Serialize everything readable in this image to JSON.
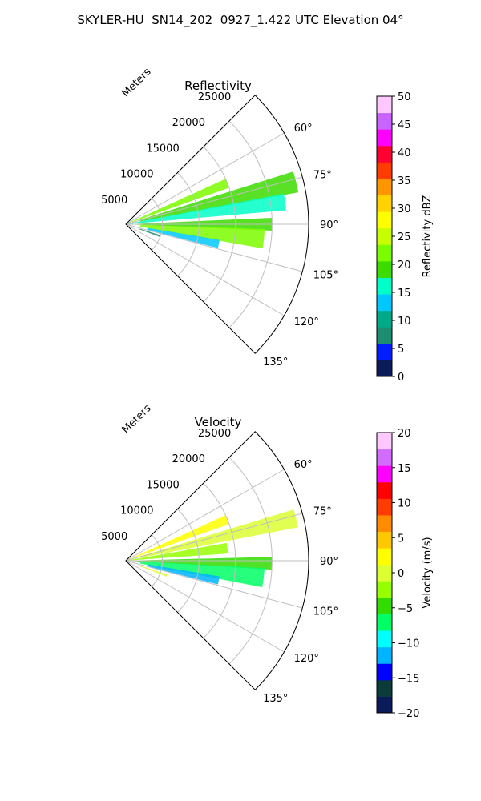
{
  "figure_title": "SKYLER-HU  SN14_202  0927_1.422 UTC Elevation 04°",
  "chart_data": [
    {
      "type": "heatmap",
      "subtype": "polar-sector",
      "title": "Reflectivity",
      "radial_axis_label": "Meters",
      "radial_ticks": [
        5000,
        10000,
        15000,
        20000,
        25000
      ],
      "radial_tick_labels": [
        "5000",
        "10000",
        "15000",
        "20000",
        "25000"
      ],
      "rlim": [
        0,
        25000
      ],
      "azimuth_range_deg": [
        45,
        135
      ],
      "azimuth_ticks": [
        60,
        75,
        90,
        105,
        120,
        135
      ],
      "azimuth_tick_labels": [
        "60°",
        "75°",
        "90°",
        "105°",
        "120°",
        "135°"
      ],
      "grid": true,
      "colorbar": {
        "label": "Reflectivity dBZ",
        "range": [
          0,
          50
        ],
        "ticks": [
          0,
          5,
          10,
          15,
          20,
          25,
          30,
          35,
          40,
          45,
          50
        ],
        "tick_labels": [
          "0",
          "5",
          "10",
          "15",
          "20",
          "25",
          "30",
          "35",
          "40",
          "45",
          "50"
        ],
        "placement": "right"
      },
      "features": [
        {
          "az_center": 68,
          "az_width": 5,
          "r_min": 500,
          "r_max": 15000,
          "value": 22
        },
        {
          "az_center": 76,
          "az_width": 7,
          "r_min": 2000,
          "r_max": 24000,
          "value": 18
        },
        {
          "az_center": 82,
          "az_width": 6,
          "r_min": 500,
          "r_max": 22000,
          "value": 16
        },
        {
          "az_center": 90,
          "az_width": 5,
          "r_min": 1000,
          "r_max": 20000,
          "value": 20
        },
        {
          "az_center": 96,
          "az_width": 8,
          "r_min": 2000,
          "r_max": 19000,
          "value": 21
        },
        {
          "az_center": 102,
          "az_width": 5,
          "r_min": 3000,
          "r_max": 13000,
          "value": 12
        },
        {
          "az_center": 109,
          "az_width": 3,
          "r_min": 2000,
          "r_max": 5000,
          "value": 6
        }
      ]
    },
    {
      "type": "heatmap",
      "subtype": "polar-sector",
      "title": "Velocity",
      "radial_axis_label": "Meters",
      "radial_ticks": [
        5000,
        10000,
        15000,
        20000,
        25000
      ],
      "radial_tick_labels": [
        "5000",
        "10000",
        "15000",
        "20000",
        "25000"
      ],
      "rlim": [
        0,
        25000
      ],
      "azimuth_range_deg": [
        45,
        135
      ],
      "azimuth_ticks": [
        60,
        75,
        90,
        105,
        120,
        135
      ],
      "azimuth_tick_labels": [
        "60°",
        "75°",
        "90°",
        "105°",
        "120°",
        "135°"
      ],
      "grid": true,
      "colorbar": {
        "label": "Velocity (m/s)",
        "range": [
          -20,
          20
        ],
        "ticks": [
          -20,
          -15,
          -10,
          -5,
          0,
          5,
          10,
          15,
          20
        ],
        "tick_labels": [
          "−20",
          "−15",
          "−10",
          "−5",
          "0",
          "5",
          "10",
          "15",
          "20"
        ],
        "placement": "right"
      },
      "features": [
        {
          "az_center": 68,
          "az_width": 5,
          "r_min": 500,
          "r_max": 15000,
          "value": 3
        },
        {
          "az_center": 76,
          "az_width": 6,
          "r_min": 2000,
          "r_max": 24000,
          "value": 1
        },
        {
          "az_center": 83,
          "az_width": 6,
          "r_min": 500,
          "r_max": 14000,
          "value": -2
        },
        {
          "az_center": 91,
          "az_width": 5,
          "r_min": 1000,
          "r_max": 20000,
          "value": -5
        },
        {
          "az_center": 97,
          "az_width": 8,
          "r_min": 2000,
          "r_max": 19000,
          "value": -8
        },
        {
          "az_center": 102,
          "az_width": 5,
          "r_min": 3000,
          "r_max": 13000,
          "value": -11
        },
        {
          "az_center": 110,
          "az_width": 3,
          "r_min": 2000,
          "r_max": 6000,
          "value": 1
        }
      ]
    }
  ],
  "colors": {
    "grid": "#bfbfbf",
    "axis": "#000000",
    "reflectivity_scale": [
      "#0b1a59",
      "#001cff",
      "#1e8c6e",
      "#00aa88",
      "#00c8ff",
      "#00ffc8",
      "#3cdc00",
      "#7cfc00",
      "#c8ff00",
      "#ffff00",
      "#ffd200",
      "#ff9600",
      "#ff3c00",
      "#ff0032",
      "#ff00ff",
      "#c864ff",
      "#ffc8ff"
    ],
    "velocity_scale": [
      "#0b1a59",
      "#0a3d3a",
      "#0000ff",
      "#00b4ff",
      "#00ffff",
      "#00ff64",
      "#32dc00",
      "#96ff00",
      "#dcff32",
      "#ffff00",
      "#ffc800",
      "#ff8c00",
      "#ff3c00",
      "#ff0000",
      "#ff00ff",
      "#d26cff",
      "#ffc8ff"
    ]
  }
}
